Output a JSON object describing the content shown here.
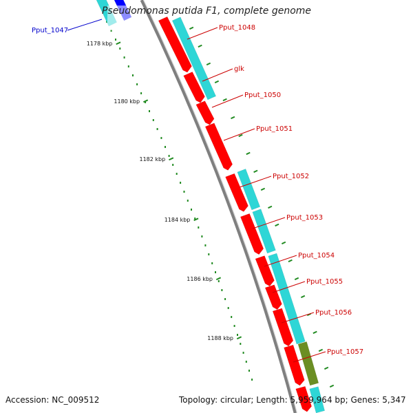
{
  "title": "Pseudomonas putida F1, complete genome",
  "footer": {
    "accession": "Accession: NC_009512",
    "topology": "Topology: circular; Length: 5,959,964 bp; Genes: 5,347"
  },
  "colors": {
    "forward_cds": "#ff0000",
    "reverse_cds": "#2ed6d6",
    "highlight_cds": "#6b8e23",
    "selected_cds": "#0000ff",
    "label_red": "#cc0000",
    "label_blue": "#0000cc",
    "backbone": "#7f7f7f",
    "ticks": "#228b22"
  },
  "tick_labels": [
    "1178 kbp",
    "1180 kbp",
    "1182 kbp",
    "1184 kbp",
    "1186 kbp",
    "1188 kbp"
  ],
  "genes": [
    {
      "label": "Pput_1047",
      "color": "blue"
    },
    {
      "label": "Pput_1048",
      "color": "red"
    },
    {
      "label": "glk",
      "color": "red"
    },
    {
      "label": "Pput_1050",
      "color": "red"
    },
    {
      "label": "Pput_1051",
      "color": "red"
    },
    {
      "label": "Pput_1052",
      "color": "red"
    },
    {
      "label": "Pput_1053",
      "color": "red"
    },
    {
      "label": "Pput_1054",
      "color": "red"
    },
    {
      "label": "Pput_1055",
      "color": "red"
    },
    {
      "label": "Pput_1056",
      "color": "red"
    },
    {
      "label": "Pput_1057",
      "color": "red"
    }
  ]
}
